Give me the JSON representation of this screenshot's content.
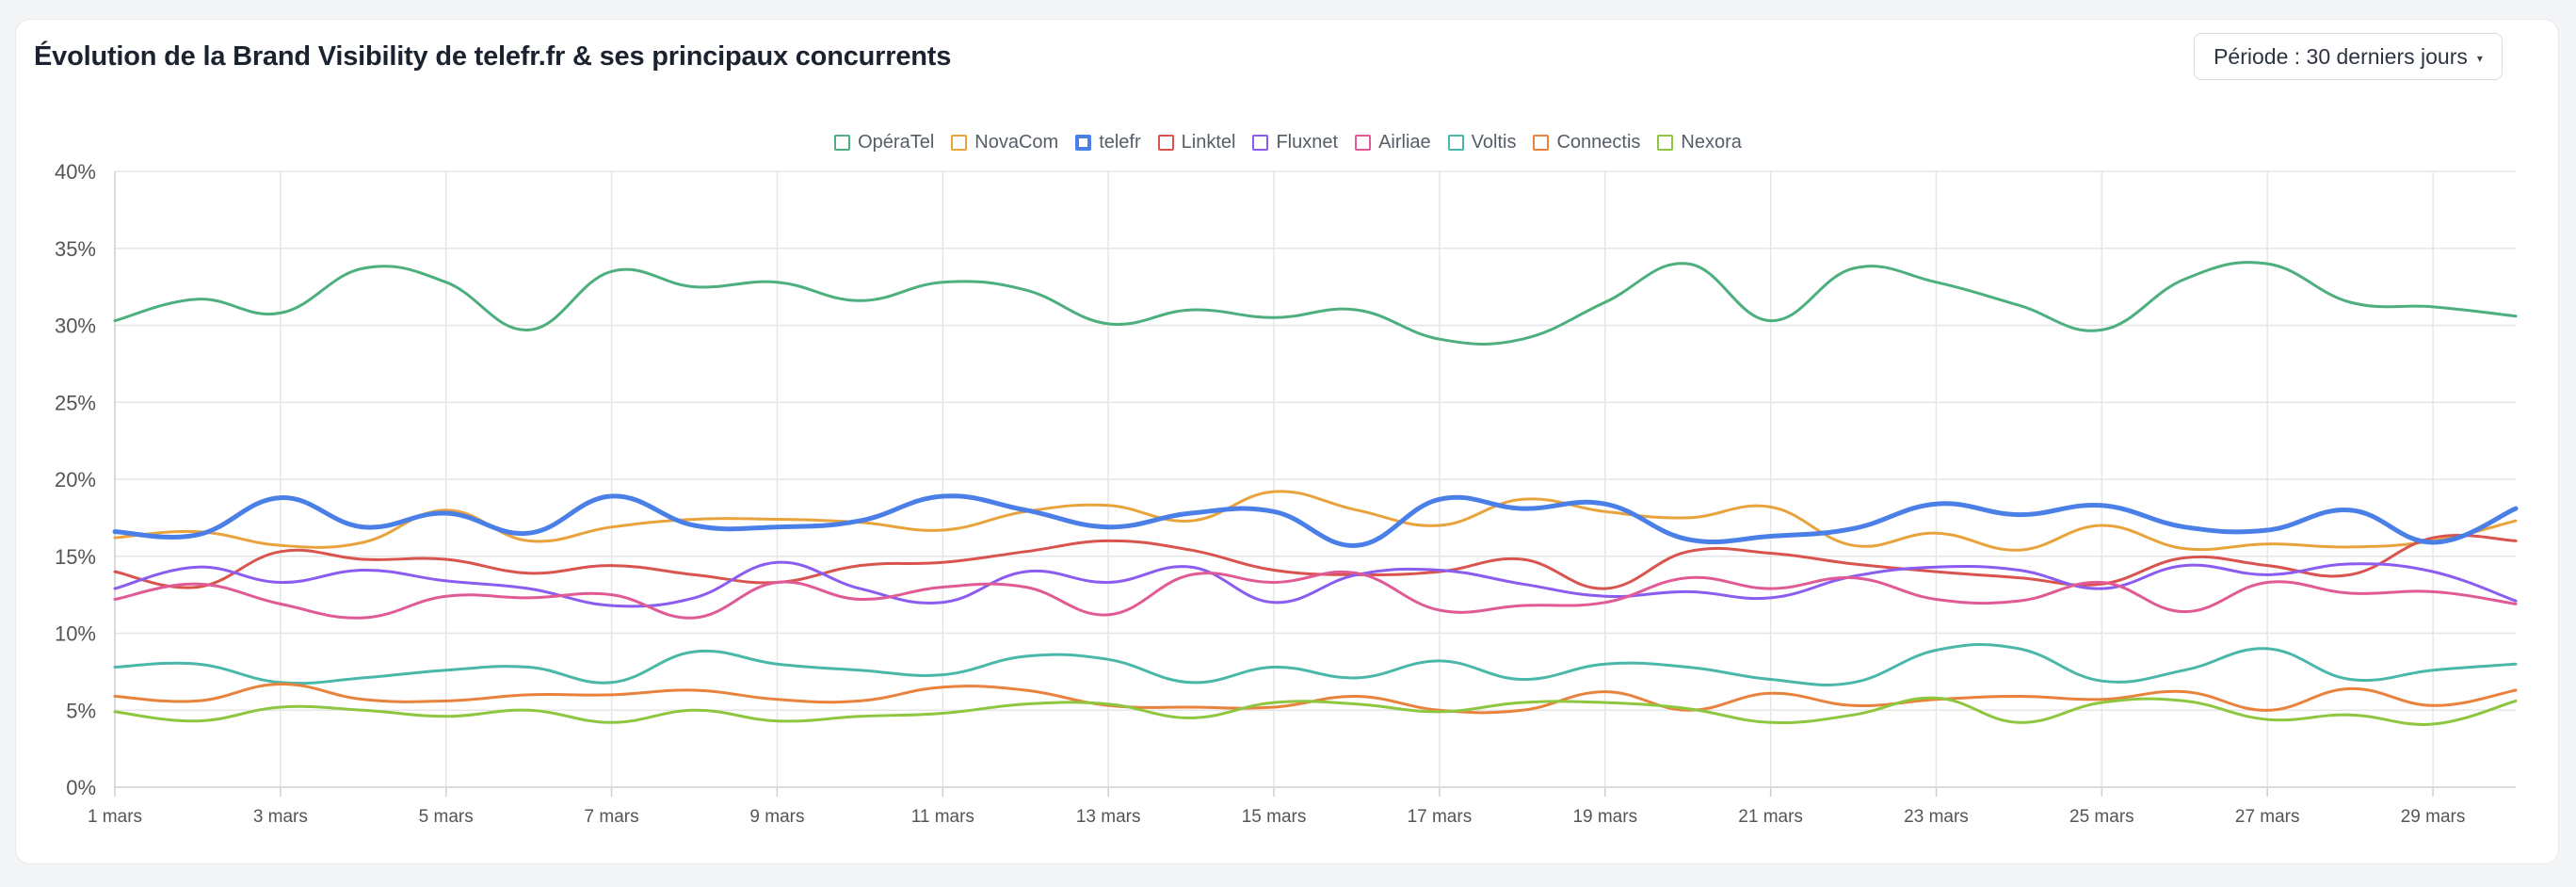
{
  "header": {
    "title": "Évolution de la Brand Visibility de telefr.fr & ses principaux concurrents",
    "period_label": "Période : 30 derniers jours",
    "period_caret": "▾"
  },
  "chart_data": {
    "type": "line",
    "title": "Évolution de la Brand Visibility de telefr.fr & ses principaux concurrents",
    "xlabel": "",
    "ylabel": "",
    "ylim": [
      0,
      40
    ],
    "yticks": [
      "0%",
      "5%",
      "10%",
      "15%",
      "20%",
      "25%",
      "30%",
      "35%",
      "40%"
    ],
    "grid": true,
    "legend_position": "top-center",
    "x": [
      "1 mars",
      "2 mars",
      "3 mars",
      "4 mars",
      "5 mars",
      "6 mars",
      "7 mars",
      "8 mars",
      "9 mars",
      "10 mars",
      "11 mars",
      "12 mars",
      "13 mars",
      "14 mars",
      "15 mars",
      "16 mars",
      "17 mars",
      "18 mars",
      "19 mars",
      "20 mars",
      "21 mars",
      "22 mars",
      "23 mars",
      "24 mars",
      "25 mars",
      "26 mars",
      "27 mars",
      "28 mars",
      "29 mars",
      "30 mars"
    ],
    "xtick_labels": [
      "1 mars",
      "3 mars",
      "5 mars",
      "7 mars",
      "9 mars",
      "11 mars",
      "13 mars",
      "15 mars",
      "17 mars",
      "19 mars",
      "21 mars",
      "23 mars",
      "25 mars",
      "27 mars",
      "29 mars"
    ],
    "series": [
      {
        "name": "OpéraTel",
        "color": "#4caf7d",
        "width": 3,
        "values": [
          30.3,
          31.7,
          30.8,
          33.7,
          32.8,
          29.7,
          33.5,
          32.5,
          32.8,
          31.6,
          32.8,
          32.3,
          30.1,
          31.0,
          30.5,
          31.0,
          29.1,
          29.1,
          31.5,
          34.0,
          30.3,
          33.7,
          32.8,
          31.3,
          29.7,
          33.0,
          34.0,
          31.5,
          31.2,
          30.6
        ]
      },
      {
        "name": "NovaCom",
        "color": "#e8a33d",
        "width": 3,
        "values": [
          16.2,
          16.6,
          15.7,
          15.9,
          18.0,
          16.0,
          16.9,
          17.4,
          17.4,
          17.2,
          16.7,
          17.9,
          18.3,
          17.3,
          19.2,
          18.0,
          17.0,
          18.7,
          17.9,
          17.5,
          18.2,
          15.7,
          16.5,
          15.4,
          17.0,
          15.5,
          15.8,
          15.6,
          16.0,
          17.3
        ]
      },
      {
        "name": "telefr",
        "color": "#4a7fe8",
        "width": 5,
        "values": [
          16.6,
          16.4,
          18.8,
          16.9,
          17.8,
          16.5,
          18.9,
          17.0,
          16.9,
          17.3,
          18.9,
          18.0,
          16.9,
          17.8,
          17.9,
          15.7,
          18.7,
          18.1,
          18.4,
          16.1,
          16.3,
          16.8,
          18.4,
          17.7,
          18.3,
          16.9,
          16.7,
          18.0,
          15.9,
          18.1
        ]
      },
      {
        "name": "Linktel",
        "color": "#d9534f",
        "width": 3,
        "values": [
          14.0,
          13.0,
          15.3,
          14.8,
          14.8,
          13.9,
          14.4,
          13.8,
          13.3,
          14.4,
          14.6,
          15.3,
          16.0,
          15.4,
          14.1,
          13.8,
          14.0,
          14.8,
          12.9,
          15.3,
          15.2,
          14.5,
          14.0,
          13.6,
          13.2,
          14.9,
          14.4,
          13.8,
          16.2,
          16.0
        ]
      },
      {
        "name": "Fluxnet",
        "color": "#8a5cf0",
        "width": 3,
        "values": [
          12.9,
          14.3,
          13.3,
          14.1,
          13.4,
          12.9,
          11.8,
          12.3,
          14.6,
          12.9,
          12.0,
          14.0,
          13.3,
          14.3,
          12.0,
          13.8,
          14.1,
          13.2,
          12.4,
          12.7,
          12.3,
          13.7,
          14.3,
          14.1,
          12.9,
          14.4,
          13.8,
          14.5,
          14.0,
          12.1
        ]
      },
      {
        "name": "Airliae",
        "color": "#e05a95",
        "width": 3,
        "values": [
          12.2,
          13.2,
          11.9,
          11.0,
          12.4,
          12.3,
          12.5,
          11.0,
          13.3,
          12.2,
          13.0,
          13.0,
          11.2,
          13.8,
          13.3,
          13.9,
          11.5,
          11.8,
          12.0,
          13.6,
          12.9,
          13.6,
          12.2,
          12.1,
          13.3,
          11.4,
          13.3,
          12.6,
          12.7,
          11.9
        ]
      },
      {
        "name": "Voltis",
        "color": "#4ab8a8",
        "width": 3,
        "values": [
          7.8,
          8.0,
          6.8,
          7.1,
          7.6,
          7.8,
          6.8,
          8.8,
          8.0,
          7.6,
          7.3,
          8.5,
          8.3,
          6.8,
          7.8,
          7.1,
          8.2,
          7.0,
          8.0,
          7.8,
          7.0,
          6.8,
          8.9,
          9.0,
          6.9,
          7.6,
          9.0,
          7.0,
          7.6,
          8.0
        ]
      },
      {
        "name": "Connectis",
        "color": "#e8823d",
        "width": 3,
        "values": [
          5.9,
          5.6,
          6.7,
          5.7,
          5.6,
          6.0,
          6.0,
          6.3,
          5.7,
          5.6,
          6.5,
          6.3,
          5.3,
          5.2,
          5.2,
          5.9,
          5.0,
          5.0,
          6.2,
          5.0,
          6.1,
          5.3,
          5.7,
          5.9,
          5.7,
          6.2,
          5.0,
          6.4,
          5.3,
          6.3
        ]
      },
      {
        "name": "Nexora",
        "color": "#8dc63f",
        "width": 3,
        "values": [
          4.9,
          4.3,
          5.2,
          5.0,
          4.6,
          5.0,
          4.2,
          5.0,
          4.3,
          4.6,
          4.8,
          5.4,
          5.4,
          4.5,
          5.5,
          5.4,
          4.9,
          5.5,
          5.5,
          5.1,
          4.2,
          4.7,
          5.8,
          4.2,
          5.5,
          5.6,
          4.4,
          4.7,
          4.1,
          5.6
        ]
      }
    ]
  },
  "style": {
    "grid_color": "#e6e6e6",
    "axis_color": "#cfcfcf",
    "tick_color": "#555555"
  }
}
